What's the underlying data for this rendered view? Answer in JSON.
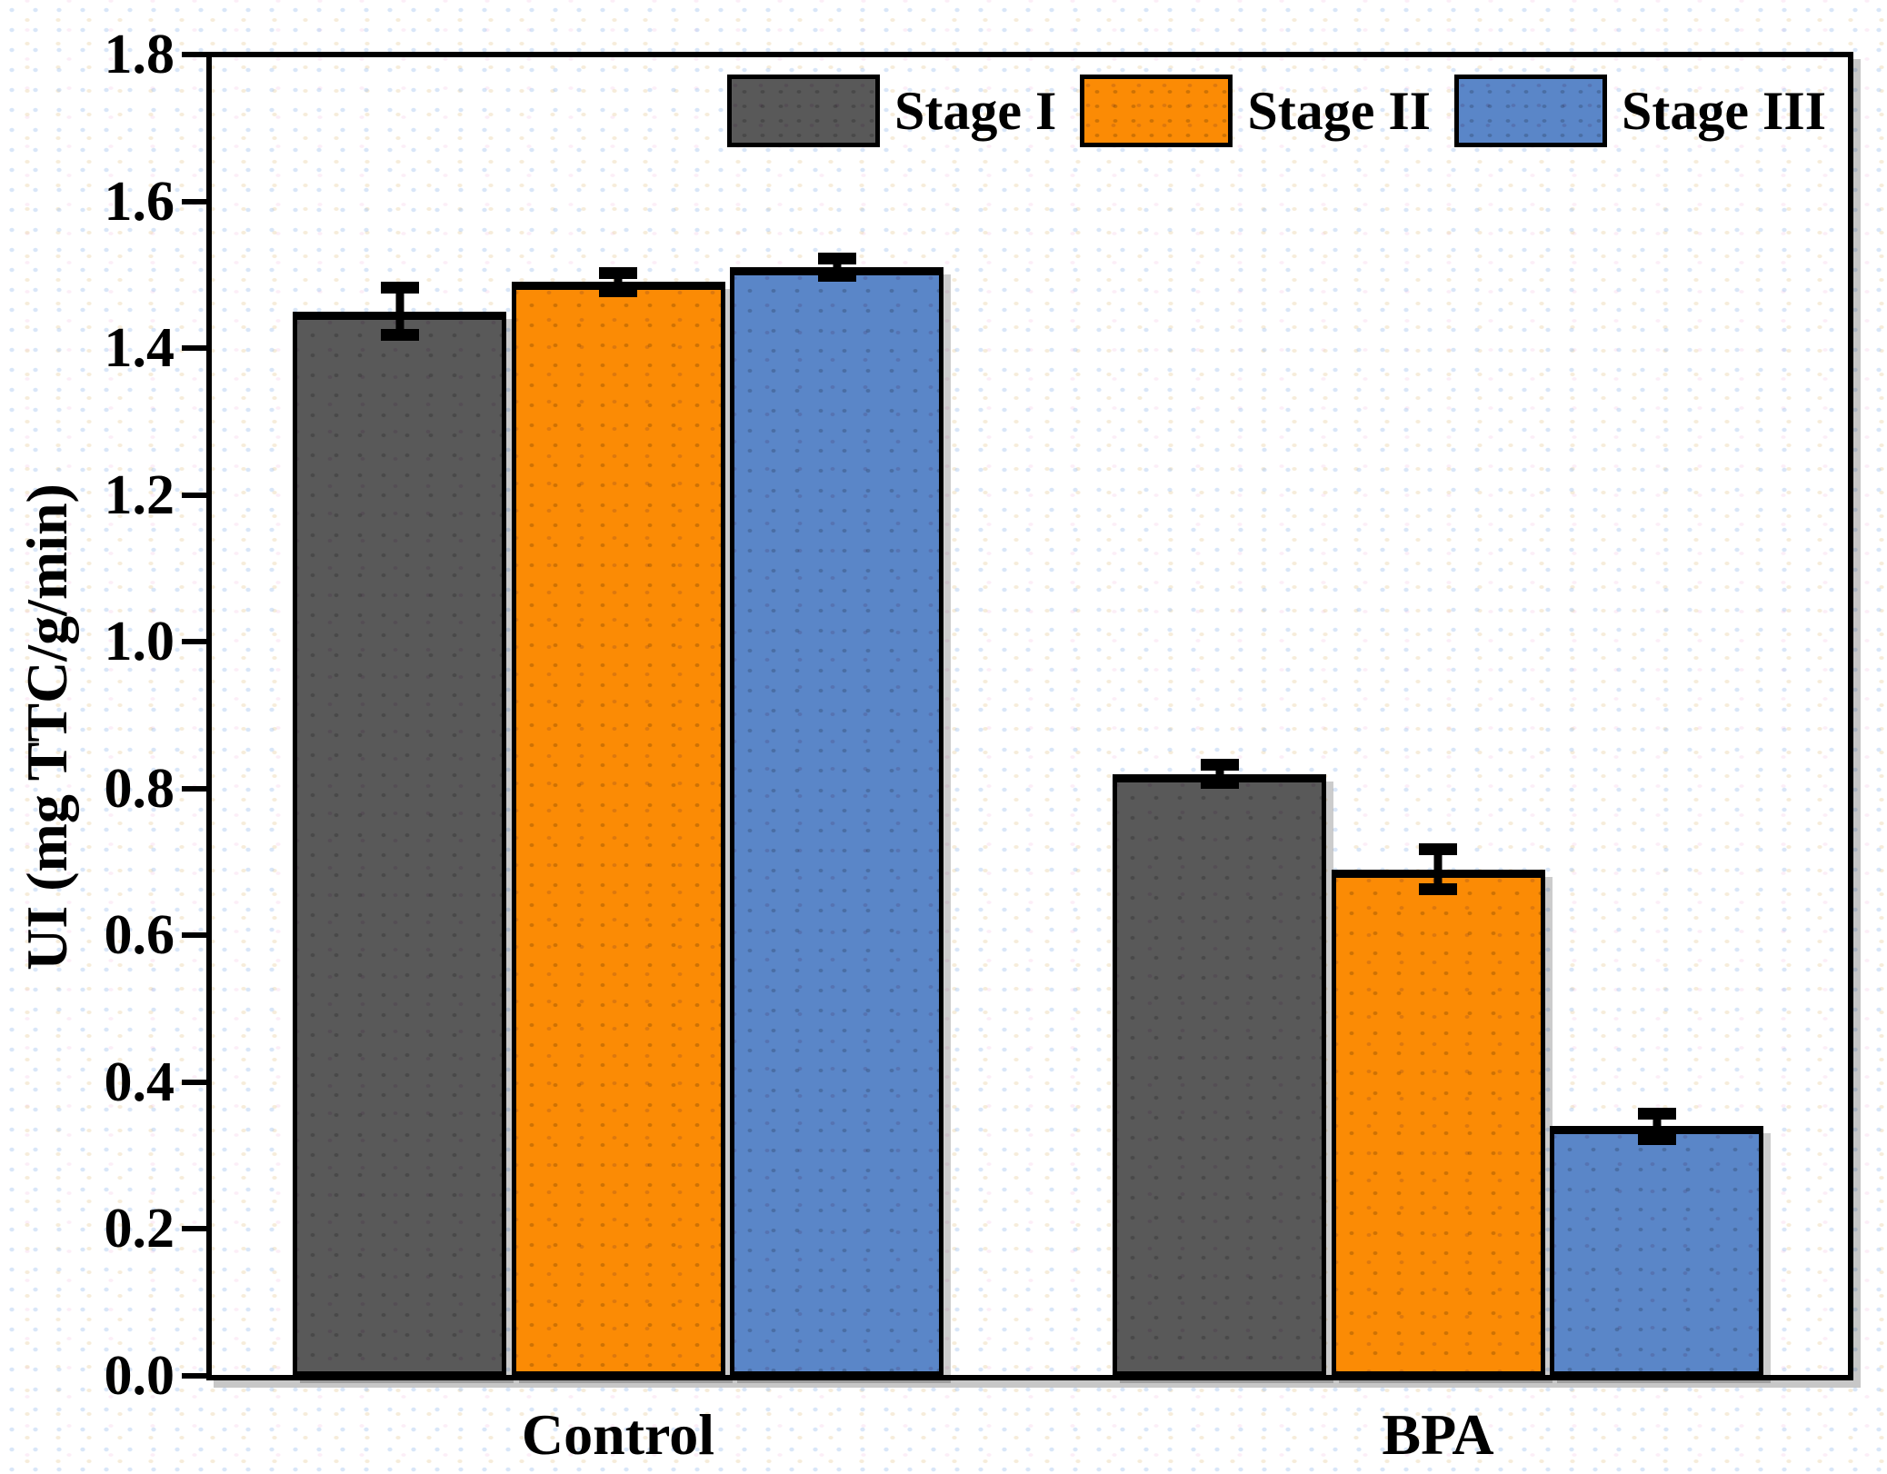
{
  "chart_data": {
    "type": "bar",
    "title": "",
    "ylabel": "UI (mg TTC/g/min)",
    "xlabel": "",
    "categories": [
      "Control",
      "BPA"
    ],
    "series": [
      {
        "name": "Stage I",
        "color": "#595959",
        "values": [
          1.45,
          0.82
        ],
        "errors": [
          0.04,
          0.02
        ]
      },
      {
        "name": "Stage II",
        "color": "#FB8B05",
        "values": [
          1.49,
          0.69
        ],
        "errors": [
          0.02,
          0.035
        ]
      },
      {
        "name": "Stage III",
        "color": "#5A86C8",
        "values": [
          1.51,
          0.34
        ],
        "errors": [
          0.02,
          0.025
        ]
      }
    ],
    "ylim": [
      0,
      1.8
    ],
    "yticks": [
      "0.0",
      "0.2",
      "0.4",
      "0.6",
      "0.8",
      "1.0",
      "1.2",
      "1.4",
      "1.6",
      "1.8"
    ],
    "grid": false,
    "legend_position": "top-center-inside",
    "error_bars": true,
    "axis_color": "#000000",
    "background_color": "#ffffff"
  }
}
